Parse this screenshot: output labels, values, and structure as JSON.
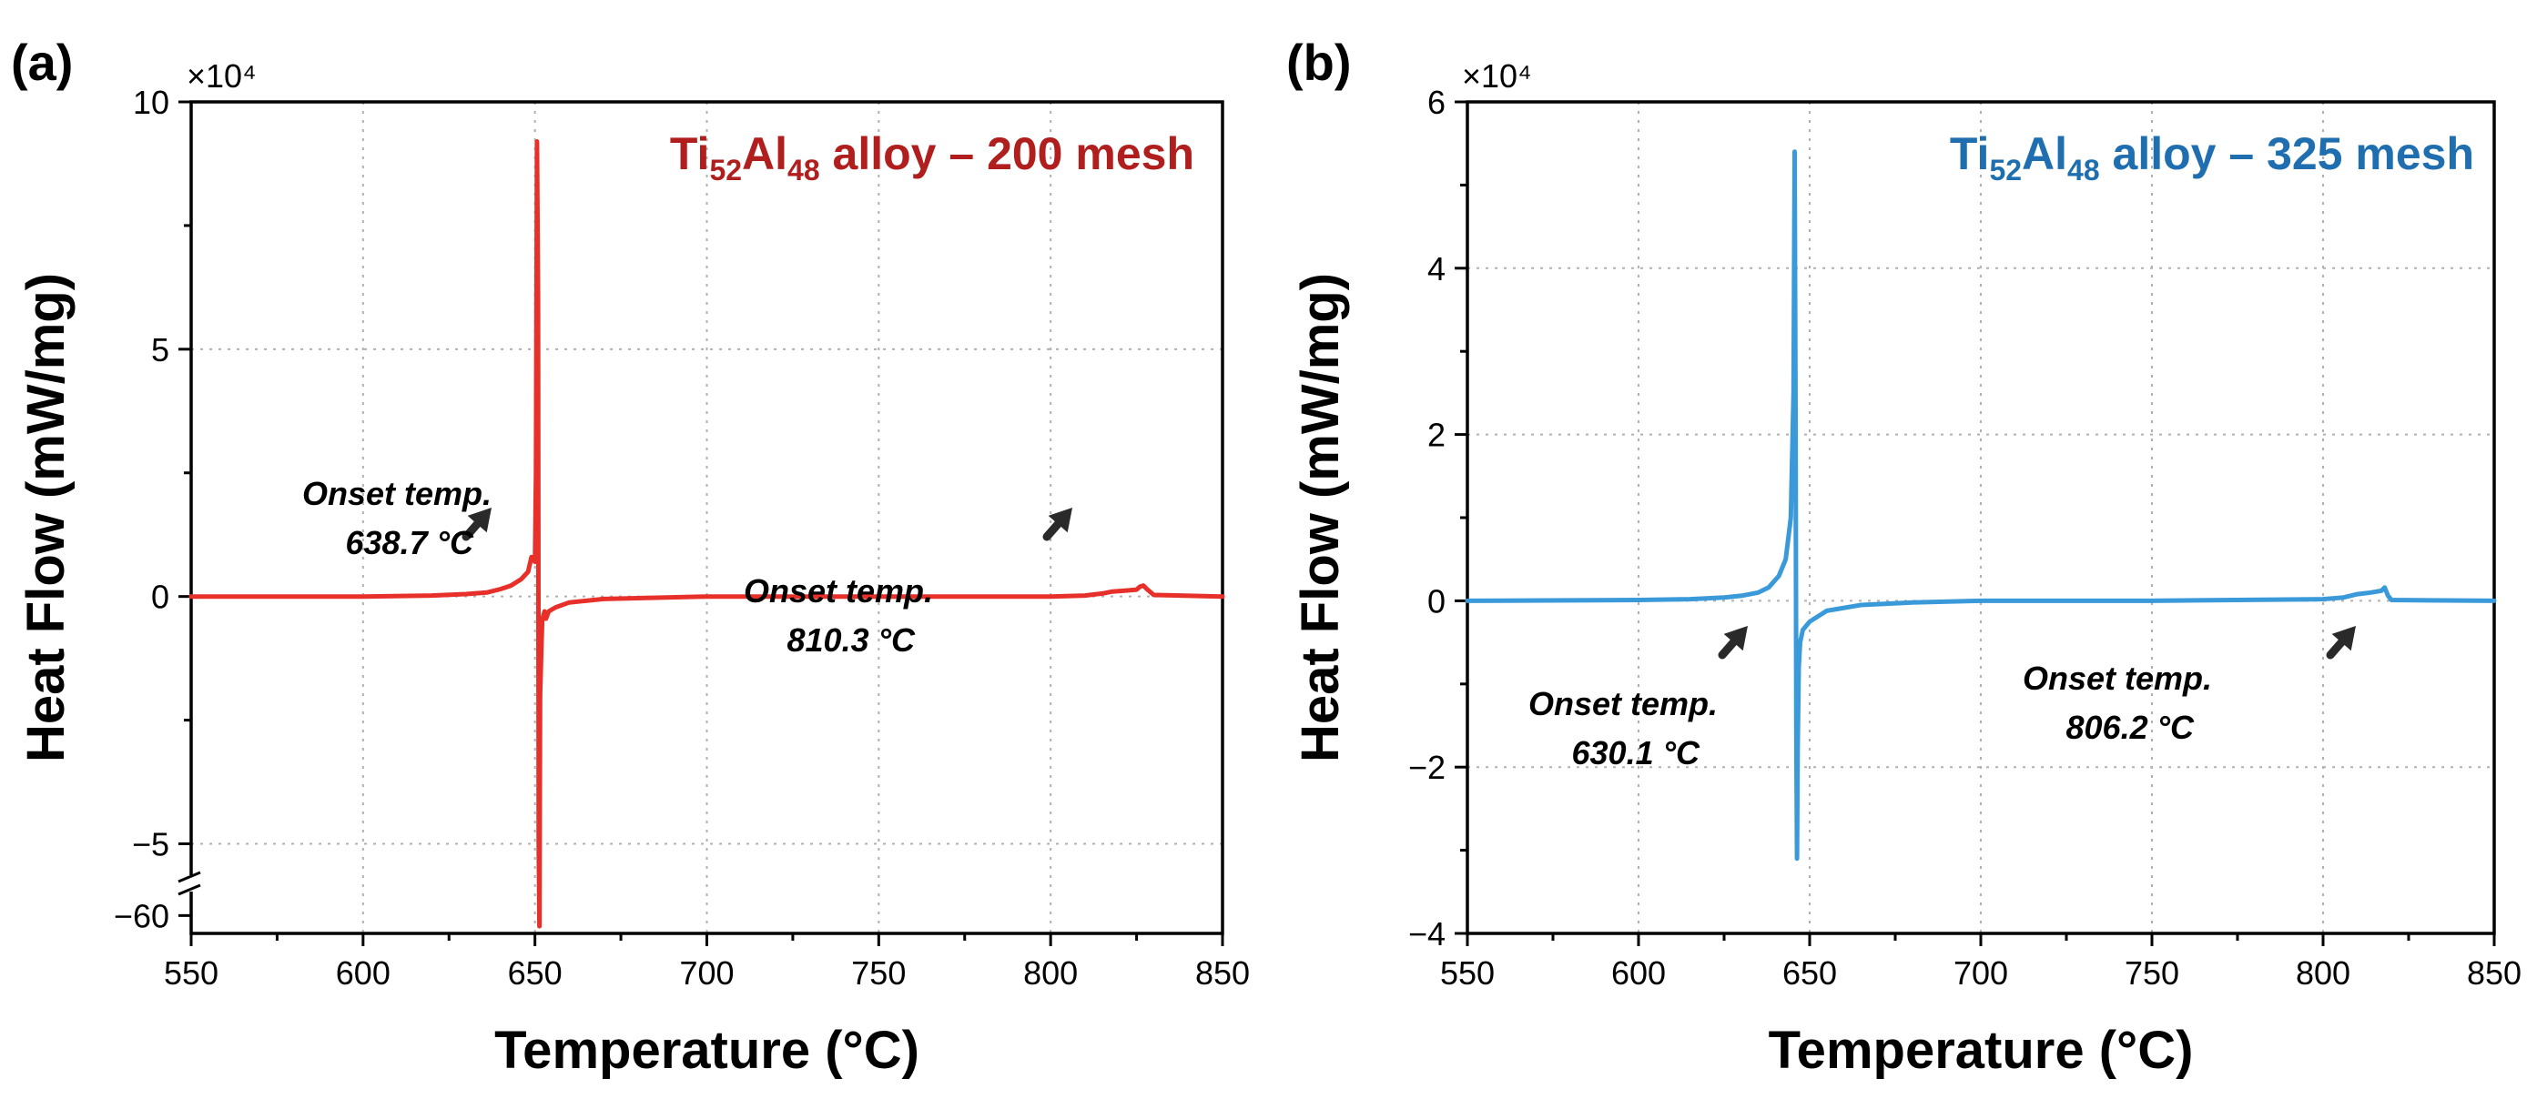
{
  "colors": {
    "panel_a": "#e8302b",
    "panel_a_title": "#b01e1e",
    "panel_b": "#3a9ad9",
    "panel_b_title": "#1f6fb0"
  },
  "chart_data": [
    {
      "type": "line",
      "panel_label": "(a)",
      "title": {
        "main1": "Ti",
        "sub1": "52",
        "main2": "Al",
        "sub2": "48",
        "rest": " alloy – 200 mesh"
      },
      "xlabel": "Temperature (°C)",
      "ylabel": "Heat Flow (mW/mg)",
      "y_multiplier": "×10⁴",
      "xlim": [
        550,
        850
      ],
      "ylim": [
        -6.5,
        10
      ],
      "axis_break": {
        "break_at": -5.8,
        "bottom_tick_value": -6.25,
        "bottom_tick_label": "−60"
      },
      "xticks": [
        550,
        600,
        650,
        700,
        750,
        800,
        850
      ],
      "yticks": [
        {
          "v": 10,
          "label": "10"
        },
        {
          "v": 5,
          "label": "5"
        },
        {
          "v": 0,
          "label": "0"
        },
        {
          "v": -5,
          "label": "−5"
        }
      ],
      "yminor": [
        7.5,
        2.5,
        -2.5
      ],
      "series": [
        {
          "name": "Ti52Al48 200 mesh",
          "x": [
            550,
            600,
            620,
            630,
            636,
            640,
            643,
            646,
            648,
            649,
            650,
            650.3,
            650.6,
            650.9,
            651.1,
            651.3,
            651.5,
            651.8,
            652.1,
            652.4,
            652.8,
            653.2,
            654,
            656,
            660,
            670,
            700,
            750,
            800,
            810,
            815,
            818,
            822,
            825,
            826,
            827,
            828,
            830,
            850
          ],
          "y": [
            0,
            0,
            0.02,
            0.05,
            0.08,
            0.15,
            0.22,
            0.35,
            0.5,
            0.8,
            0.7,
            2.5,
            9.2,
            6.0,
            -5.0,
            -6.4,
            -2.0,
            -1.2,
            -0.5,
            -0.4,
            -0.3,
            -0.45,
            -0.3,
            -0.22,
            -0.12,
            -0.05,
            0,
            0,
            0,
            0.02,
            0.06,
            0.1,
            0.12,
            0.14,
            0.2,
            0.22,
            0.15,
            0.03,
            0
          ]
        }
      ],
      "annotations": [
        {
          "line1": "Onset temp.",
          "line2": "638.7 °C",
          "x": 638.7,
          "y": 0
        },
        {
          "line1": "Onset temp.",
          "line2": "810.3 °C",
          "x": 810.3,
          "y": 0
        }
      ]
    },
    {
      "type": "line",
      "panel_label": "(b)",
      "title": {
        "main1": "Ti",
        "sub1": "52",
        "main2": "Al",
        "sub2": "48",
        "rest": " alloy – 325 mesh"
      },
      "xlabel": "Temperature (°C)",
      "ylabel": "Heat Flow (mW/mg)",
      "y_multiplier": "×10⁴",
      "xlim": [
        550,
        850
      ],
      "ylim": [
        -4,
        6
      ],
      "xticks": [
        550,
        600,
        650,
        700,
        750,
        800,
        850
      ],
      "yticks": [
        {
          "v": 6,
          "label": "6"
        },
        {
          "v": 4,
          "label": "4"
        },
        {
          "v": 2,
          "label": "2"
        },
        {
          "v": 0,
          "label": "0"
        },
        {
          "v": -2,
          "label": "−2"
        },
        {
          "v": -4,
          "label": "−4"
        }
      ],
      "yminor": [
        5,
        3,
        1,
        -1,
        -3
      ],
      "series": [
        {
          "name": "Ti52Al48 325 mesh",
          "x": [
            550,
            600,
            615,
            625,
            630,
            635,
            638,
            641,
            643,
            644.5,
            645.3,
            645.6,
            645.9,
            646.1,
            646.3,
            646.5,
            646.8,
            647.2,
            648,
            650,
            655,
            665,
            680,
            700,
            750,
            800,
            806,
            810,
            814,
            817,
            818,
            819,
            820,
            850
          ],
          "y": [
            0,
            0.01,
            0.02,
            0.04,
            0.06,
            0.1,
            0.16,
            0.3,
            0.5,
            1.0,
            2.5,
            5.4,
            2.0,
            -1.5,
            -3.1,
            -1.8,
            -0.8,
            -0.5,
            -0.35,
            -0.25,
            -0.12,
            -0.05,
            -0.02,
            0,
            0,
            0.02,
            0.04,
            0.08,
            0.1,
            0.12,
            0.16,
            0.06,
            0.01,
            0
          ]
        }
      ],
      "annotations": [
        {
          "line1": "Onset temp.",
          "line2": "630.1 °C",
          "x": 630.1,
          "y": 0
        },
        {
          "line1": "Onset temp.",
          "line2": "806.2 °C",
          "x": 806.2,
          "y": 0
        }
      ]
    }
  ]
}
